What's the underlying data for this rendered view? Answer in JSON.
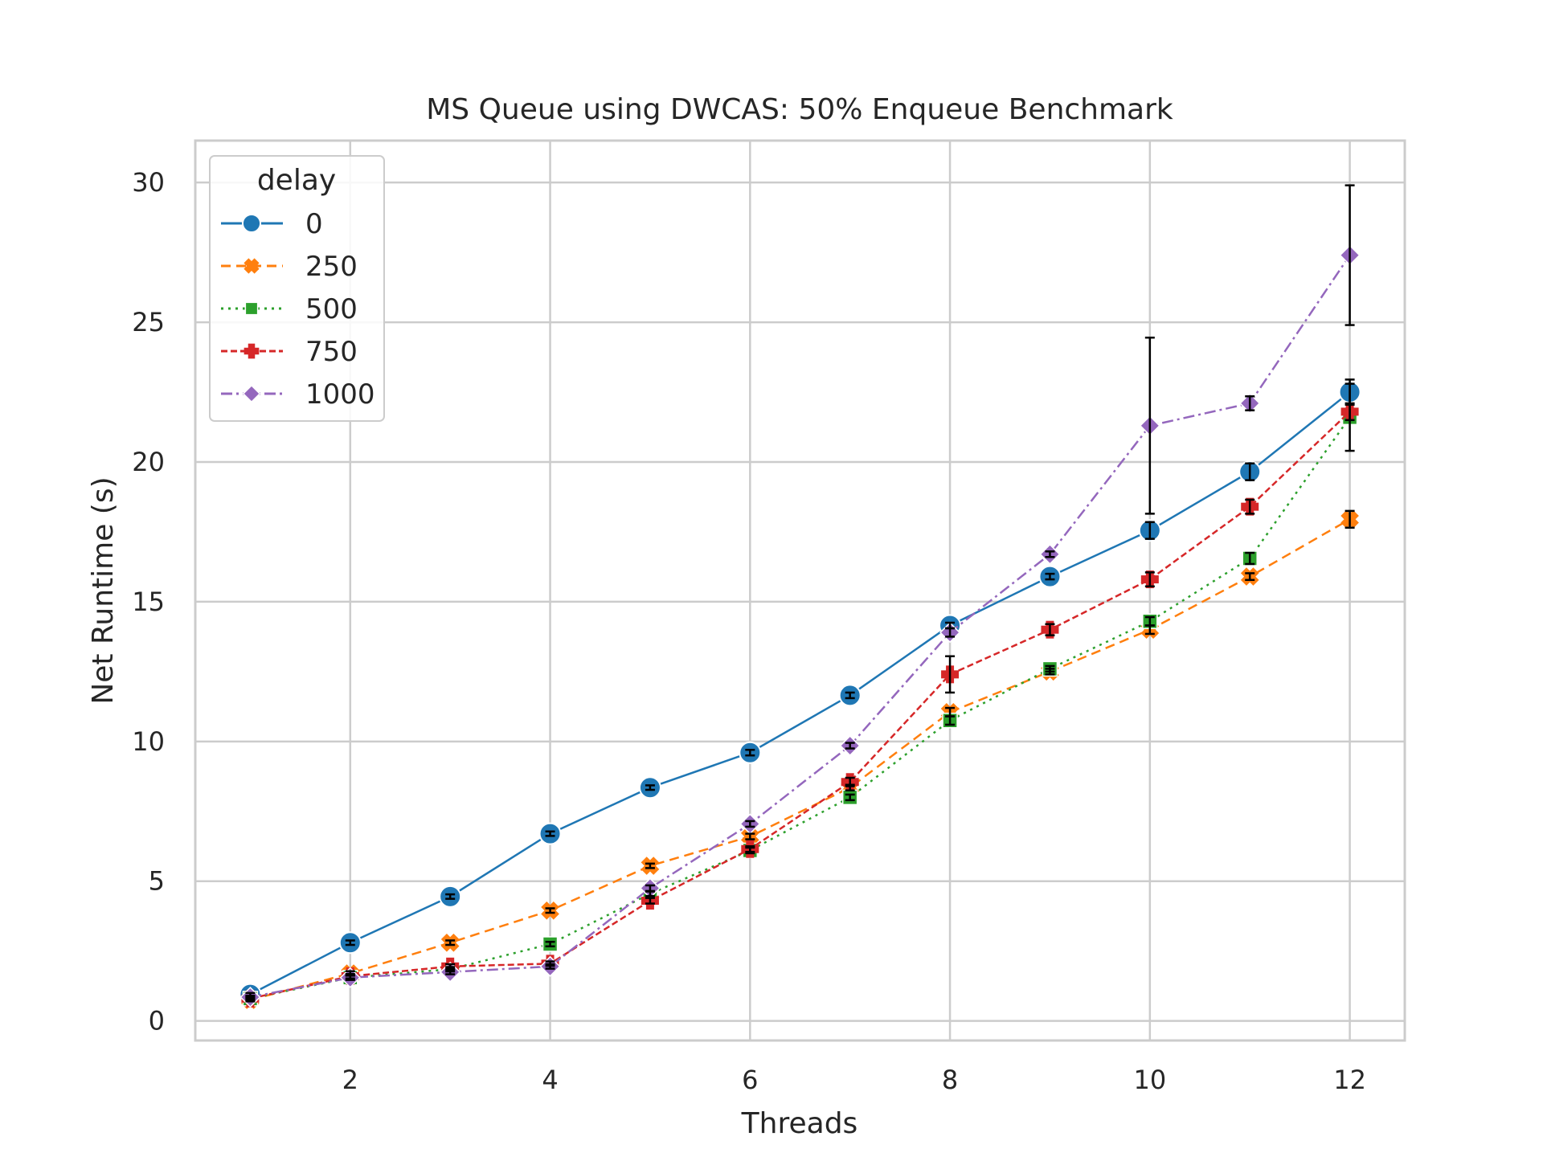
{
  "chart_data": {
    "type": "line",
    "title": "MS Queue using DWCAS: 50% Enqueue Benchmark",
    "xlabel": "Threads",
    "ylabel": "Net Runtime (s)",
    "xlim": [
      0.45,
      12.55
    ],
    "ylim": [
      -0.7,
      31.5
    ],
    "xticks": [
      2,
      4,
      6,
      8,
      10,
      12
    ],
    "yticks": [
      0,
      5,
      10,
      15,
      20,
      25,
      30
    ],
    "grid": true,
    "legend": {
      "title": "delay",
      "position": "top-left"
    },
    "x": [
      1,
      2,
      3,
      4,
      5,
      6,
      7,
      8,
      9,
      10,
      11,
      12
    ],
    "series": [
      {
        "name": "0",
        "color": "#1f77b4",
        "marker": "circle",
        "dash": "solid",
        "values": [
          0.95,
          2.8,
          4.45,
          6.7,
          8.35,
          9.6,
          11.65,
          14.15,
          15.9,
          17.55,
          19.65,
          22.5
        ],
        "errors": [
          0.05,
          0.08,
          0.08,
          0.08,
          0.08,
          0.1,
          0.1,
          0.1,
          0.1,
          0.3,
          0.3,
          0.45
        ]
      },
      {
        "name": "250",
        "color": "#ff7f0e",
        "marker": "x",
        "dash": "dashed",
        "values": [
          0.75,
          1.7,
          2.8,
          3.95,
          5.55,
          6.6,
          8.35,
          11.05,
          12.5,
          14.0,
          15.9,
          17.95
        ],
        "errors": [
          0.05,
          0.08,
          0.08,
          0.08,
          0.08,
          0.1,
          0.1,
          0.15,
          0.1,
          0.15,
          0.12,
          0.3
        ]
      },
      {
        "name": "500",
        "color": "#2ca02c",
        "marker": "square",
        "dash": "dotted",
        "values": [
          0.8,
          1.55,
          1.85,
          2.75,
          4.55,
          6.1,
          8.0,
          10.75,
          12.6,
          14.3,
          16.55,
          21.6
        ],
        "errors": [
          0.05,
          0.08,
          0.08,
          0.08,
          0.08,
          0.1,
          0.1,
          0.15,
          0.1,
          0.15,
          0.2,
          1.2
        ]
      },
      {
        "name": "750",
        "color": "#d62728",
        "marker": "plus",
        "dash": "densely-dashed",
        "values": [
          0.8,
          1.6,
          1.95,
          2.05,
          4.3,
          6.15,
          8.55,
          12.4,
          14.0,
          15.8,
          18.4,
          21.8
        ],
        "errors": [
          0.05,
          0.08,
          0.08,
          0.08,
          0.1,
          0.1,
          0.15,
          0.65,
          0.2,
          0.25,
          0.25,
          0.3
        ]
      },
      {
        "name": "1000",
        "color": "#9467bd",
        "marker": "diamond",
        "dash": "dashdot",
        "values": [
          0.85,
          1.55,
          1.75,
          1.95,
          4.75,
          7.05,
          9.85,
          13.9,
          16.7,
          21.3,
          22.1,
          27.4
        ],
        "errors": [
          0.05,
          0.08,
          0.08,
          0.08,
          0.1,
          0.1,
          0.1,
          0.15,
          0.1,
          3.15,
          0.25,
          2.5
        ]
      }
    ]
  }
}
